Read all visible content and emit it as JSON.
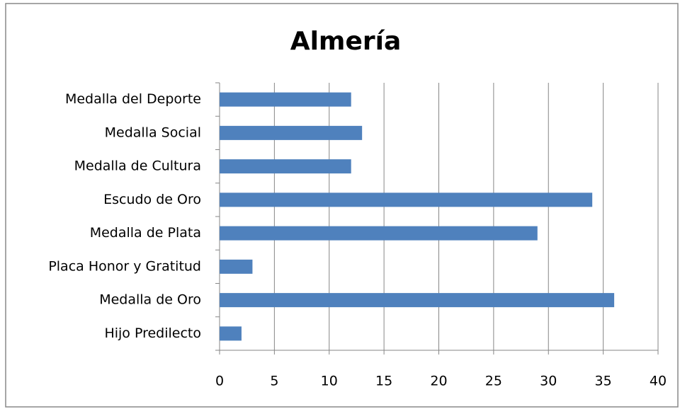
{
  "chart_data": {
    "type": "bar",
    "orientation": "horizontal",
    "title": "Almería",
    "categories": [
      "Medalla del Deporte",
      "Medalla Social",
      "Medalla de Cultura",
      "Escudo de Oro",
      "Medalla de Plata",
      "Placa Honor y Gratitud",
      "Medalla de Oro",
      "Hijo Predilecto"
    ],
    "values": [
      12,
      13,
      12,
      34,
      29,
      3,
      36,
      2
    ],
    "color": "#4f81bd",
    "xlim": [
      0,
      40
    ],
    "xticks": [
      0,
      5,
      10,
      15,
      20,
      25,
      30,
      35,
      40
    ],
    "grid": true
  }
}
